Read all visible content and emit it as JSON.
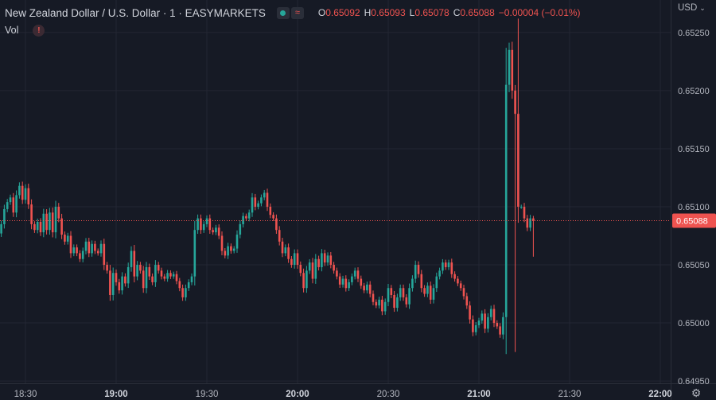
{
  "header": {
    "title": "New Zealand Dollar / U.S. Dollar · 1 · EASYMARKETS",
    "ohlc": [
      {
        "key": "O",
        "value": "0.65092"
      },
      {
        "key": "H",
        "value": "0.65093"
      },
      {
        "key": "L",
        "value": "0.65078"
      },
      {
        "key": "C",
        "value": "0.65088"
      },
      {
        "key": "",
        "value": "−0.00004 (−0.01%)"
      }
    ],
    "vol_label": "Vol",
    "warning_glyph": "!",
    "currency": "USD"
  },
  "colors": {
    "background": "#161a25",
    "grid": "#232633",
    "up": "#26a69a",
    "down": "#ef5350",
    "text": "#b2b5be"
  },
  "chart_data": {
    "type": "candlestick",
    "title": "New Zealand Dollar / U.S. Dollar · 1 · EASYMARKETS",
    "ylim": [
      0.64948,
      0.65278
    ],
    "yticks": [
      "0.65250",
      "0.65200",
      "0.65150",
      "0.65100",
      "0.65050",
      "0.65000",
      "0.64950"
    ],
    "ytick_values": [
      0.6525,
      0.652,
      0.6515,
      0.651,
      0.6505,
      0.65,
      0.6495
    ],
    "xticks": [
      "18:30",
      "19:00",
      "19:30",
      "20:00",
      "20:30",
      "21:00",
      "21:30",
      "22:00"
    ],
    "xtick_minutes": [
      0,
      30,
      60,
      90,
      120,
      150,
      180,
      210
    ],
    "last_price": 0.65088,
    "last_price_label": "0.65088",
    "start_minute": -8,
    "interval_minutes": 1,
    "closes": [
      0.65085,
      0.65098,
      0.65104,
      0.65108,
      0.65095,
      0.6511,
      0.65118,
      0.65106,
      0.65116,
      0.65102,
      0.65085,
      0.6508,
      0.65087,
      0.65078,
      0.65094,
      0.6508,
      0.65095,
      0.65078,
      0.651,
      0.6509,
      0.65076,
      0.6507,
      0.65075,
      0.6506,
      0.65065,
      0.6506,
      0.65055,
      0.65062,
      0.6507,
      0.6506,
      0.65068,
      0.65062,
      0.6506,
      0.65068,
      0.6505,
      0.65045,
      0.65024,
      0.65043,
      0.65035,
      0.65028,
      0.6504,
      0.65034,
      0.65048,
      0.65062,
      0.6504,
      0.6505,
      0.65045,
      0.6503,
      0.65048,
      0.6504,
      0.65035,
      0.6505,
      0.65045,
      0.6504,
      0.65038,
      0.65043,
      0.6504,
      0.65042,
      0.65036,
      0.6503,
      0.65022,
      0.6503,
      0.65035,
      0.6504,
      0.6508,
      0.6509,
      0.6508,
      0.65085,
      0.6509,
      0.6508,
      0.65078,
      0.65082,
      0.65075,
      0.65062,
      0.65058,
      0.65066,
      0.65062,
      0.65064,
      0.65076,
      0.65085,
      0.65092,
      0.6509,
      0.65095,
      0.65108,
      0.651,
      0.65103,
      0.65108,
      0.65112,
      0.651,
      0.65093,
      0.6509,
      0.6508,
      0.6507,
      0.6506,
      0.65065,
      0.65055,
      0.6505,
      0.6506,
      0.6505,
      0.65043,
      0.6503,
      0.65045,
      0.65052,
      0.65038,
      0.65055,
      0.65048,
      0.6506,
      0.65052,
      0.65058,
      0.6505,
      0.65045,
      0.6504,
      0.65033,
      0.65038,
      0.6503,
      0.65035,
      0.6504,
      0.65045,
      0.65038,
      0.65032,
      0.65028,
      0.65033,
      0.65025,
      0.65018,
      0.65015,
      0.6502,
      0.6501,
      0.65018,
      0.6503,
      0.65024,
      0.65013,
      0.65022,
      0.6503,
      0.65022,
      0.65016,
      0.6503,
      0.65038,
      0.6505,
      0.65042,
      0.6503,
      0.65025,
      0.65032,
      0.6502,
      0.6503,
      0.6504,
      0.65045,
      0.65052,
      0.65048,
      0.65052,
      0.65042,
      0.65038,
      0.65034,
      0.6503,
      0.65023,
      0.65015,
      0.65003,
      0.64992,
      0.64998,
      0.65002,
      0.65008,
      0.64995,
      0.65005,
      0.65012,
      0.65,
      0.64997,
      0.6499,
      0.65005,
      0.65205,
      0.65235,
      0.652,
      0.6518,
      0.651,
      0.651,
      0.6509,
      0.65082,
      0.6509,
      0.65088
    ]
  }
}
